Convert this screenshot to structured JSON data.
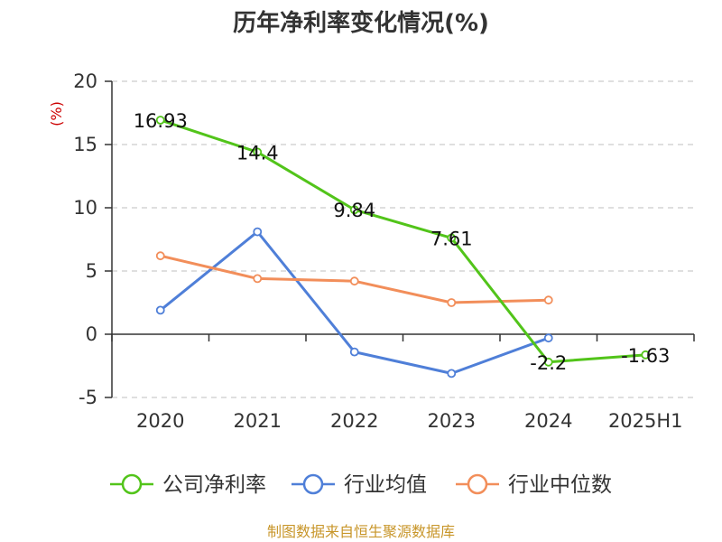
{
  "chart_data": {
    "type": "line",
    "title": "历年净利率变化情况(%)",
    "ylabel": "(%)",
    "xlabel": "",
    "categories": [
      "2020",
      "2021",
      "2022",
      "2023",
      "2024",
      "2025H1"
    ],
    "ylim": [
      -5,
      20
    ],
    "yticks": [
      -5,
      0,
      5,
      10,
      15,
      20
    ],
    "grid": true,
    "legend_position": "bottom",
    "series": [
      {
        "name": "公司净利率",
        "color": "#52c41a",
        "values": [
          16.93,
          14.4,
          9.84,
          7.61,
          -2.2,
          -1.63
        ],
        "labels": [
          "16.93",
          "14.4",
          "9.84",
          "7.61",
          "-2.2",
          "-1.63"
        ]
      },
      {
        "name": "行业均值",
        "color": "#4f7fd8",
        "values": [
          1.9,
          8.1,
          -1.4,
          -3.1,
          -0.3,
          null
        ]
      },
      {
        "name": "行业中位数",
        "color": "#f28e5a",
        "values": [
          6.2,
          4.4,
          4.2,
          2.5,
          2.7,
          null
        ]
      }
    ],
    "source": "制图数据来自恒生聚源数据库",
    "colors": {
      "axis": "#333333",
      "grid": "#cccccc",
      "ylabel": "#cc0000",
      "source": "#c8962a"
    }
  }
}
